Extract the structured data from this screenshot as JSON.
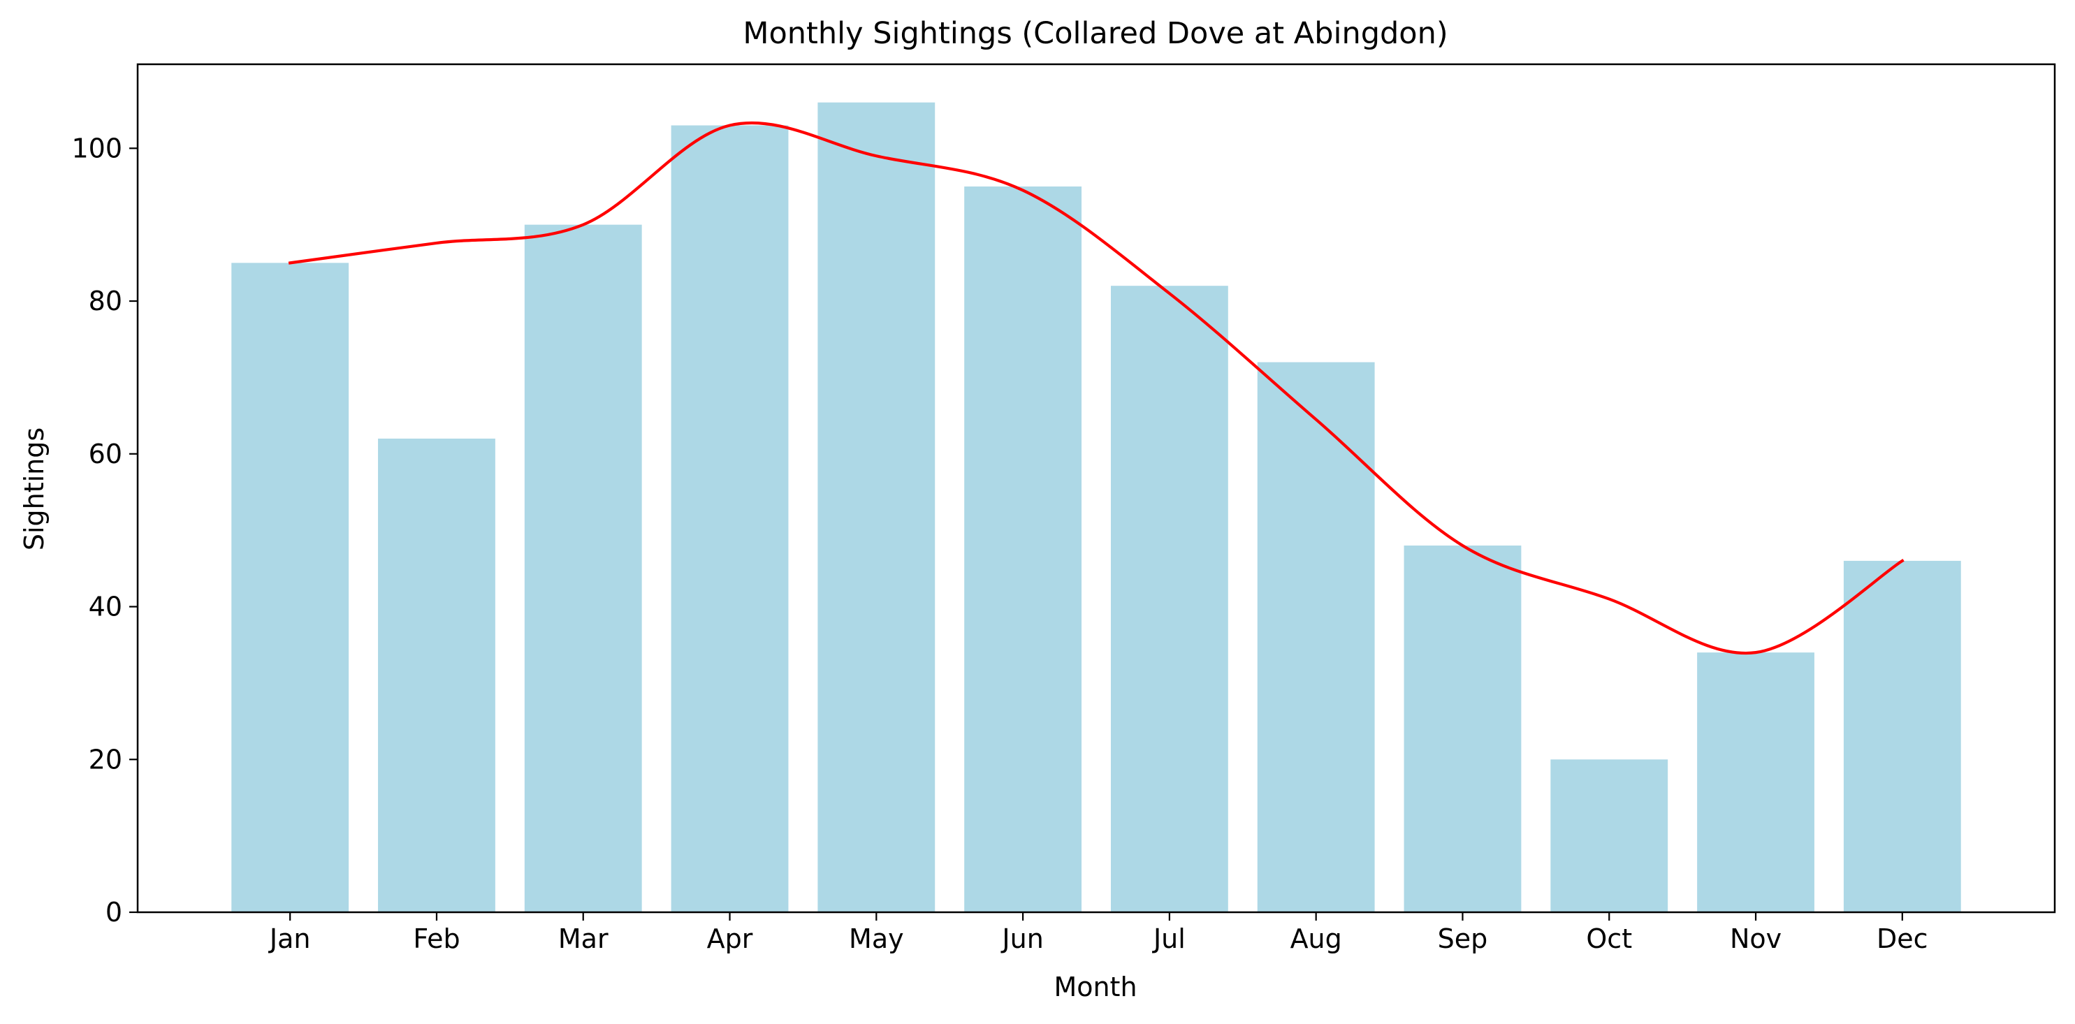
{
  "chart_data": {
    "type": "bar",
    "title": "Monthly Sightings (Collared Dove at Abingdon)",
    "xlabel": "Month",
    "ylabel": "Sightings",
    "categories": [
      "Jan",
      "Feb",
      "Mar",
      "Apr",
      "May",
      "Jun",
      "Jul",
      "Aug",
      "Sep",
      "Oct",
      "Nov",
      "Dec"
    ],
    "values": [
      85,
      62,
      90,
      103,
      106,
      95,
      82,
      72,
      48,
      20,
      34,
      46
    ],
    "ylim": [
      0,
      111
    ],
    "yticks": [
      0,
      20,
      40,
      60,
      80,
      100
    ],
    "grid": false,
    "legend": "none",
    "trend_line": {
      "type": "smoothed-line",
      "values": [
        85,
        87.6,
        90,
        103,
        99,
        94.5,
        81,
        64.5,
        48,
        41,
        34,
        46
      ]
    },
    "colors": {
      "bar": "#add8e6",
      "trend_line": "#ff0000",
      "axes": "#000000"
    }
  }
}
